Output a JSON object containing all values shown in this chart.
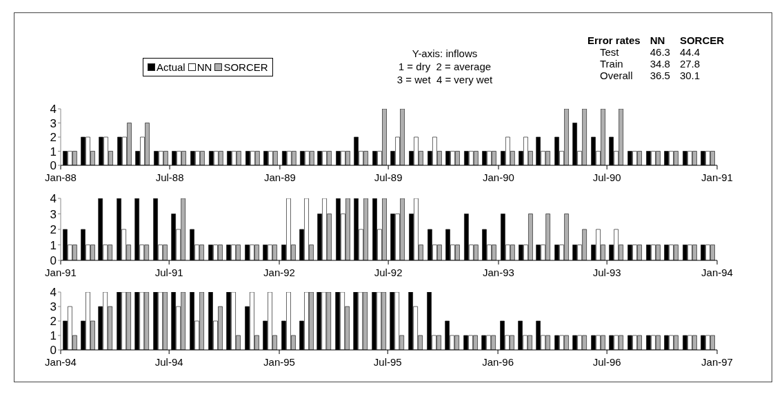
{
  "chart_data": [
    {
      "type": "bar",
      "x": [
        "1988-01-16",
        "1988-02-15",
        "1988-03-16",
        "1988-04-16",
        "1988-05-16",
        "1988-06-16",
        "1988-07-16",
        "1988-08-16",
        "1988-09-16",
        "1988-10-16",
        "1988-11-16",
        "1988-12-16",
        "1989-01-16",
        "1989-02-15",
        "1989-03-16",
        "1989-04-16",
        "1989-05-16",
        "1989-06-16",
        "1989-07-16",
        "1989-08-16",
        "1989-09-16",
        "1989-10-16",
        "1989-11-16",
        "1989-12-16",
        "1990-01-16",
        "1990-02-15",
        "1990-03-16",
        "1990-04-16",
        "1990-05-16",
        "1990-06-16",
        "1990-07-16",
        "1990-08-16",
        "1990-09-16",
        "1990-10-16",
        "1990-11-16",
        "1990-12-16"
      ],
      "series": [
        {
          "name": "Actual",
          "color": "#000000",
          "values": [
            1,
            2,
            2,
            2,
            1,
            1,
            1,
            1,
            1,
            1,
            1,
            1,
            1,
            1,
            1,
            1,
            2,
            1,
            1,
            1,
            1,
            1,
            1,
            1,
            1,
            1,
            2,
            2,
            3,
            2,
            2,
            1,
            1,
            1,
            1,
            1
          ]
        },
        {
          "name": "NN",
          "color": "#ffffff",
          "values": [
            1,
            2,
            2,
            2,
            2,
            1,
            1,
            1,
            1,
            1,
            1,
            1,
            1,
            1,
            1,
            1,
            1,
            1,
            2,
            2,
            2,
            1,
            1,
            1,
            2,
            2,
            1,
            1,
            1,
            1,
            1,
            1,
            1,
            1,
            1,
            1
          ]
        },
        {
          "name": "SORCER",
          "color": "#b0b0b0",
          "values": [
            1,
            1,
            1,
            3,
            3,
            1,
            1,
            1,
            1,
            1,
            1,
            1,
            1,
            1,
            1,
            1,
            1,
            4,
            4,
            1,
            1,
            1,
            1,
            1,
            1,
            1,
            1,
            4,
            4,
            4,
            4,
            1,
            1,
            1,
            1,
            1
          ]
        }
      ],
      "xlim": [
        "1988-01",
        "1991-01"
      ],
      "xticks": [
        {
          "value": "1988-01",
          "label": "Jan-88"
        },
        {
          "value": "1988-07",
          "label": "Jul-88"
        },
        {
          "value": "1989-01",
          "label": "Jan-89"
        },
        {
          "value": "1989-07",
          "label": "Jul-89"
        },
        {
          "value": "1990-01",
          "label": "Jan-90"
        },
        {
          "value": "1990-07",
          "label": "Jul-90"
        },
        {
          "value": "1991-01",
          "label": "Jan-91"
        }
      ],
      "ylim": [
        0,
        4
      ],
      "yticks": [
        0,
        1,
        2,
        3,
        4
      ],
      "legend": "top left",
      "annotations": [
        "Y-axis: inflows",
        "1 = dry  2 = average",
        "3 = wet  4 = very wet",
        "Error rates  NN  SORCER",
        "Test  46.3  44.4",
        "Train  34.8  27.8",
        "Overall  36.5  30.1"
      ]
    },
    {
      "type": "bar",
      "x": [
        "1991-01-16",
        "1991-02-15",
        "1991-03-16",
        "1991-04-16",
        "1991-05-16",
        "1991-06-16",
        "1991-07-16",
        "1991-08-16",
        "1991-09-16",
        "1991-10-16",
        "1991-11-16",
        "1991-12-16",
        "1992-01-16",
        "1992-02-15",
        "1992-03-16",
        "1992-04-16",
        "1992-05-16",
        "1992-06-16",
        "1992-07-16",
        "1992-08-16",
        "1992-09-16",
        "1992-10-16",
        "1992-11-16",
        "1992-12-16",
        "1993-01-16",
        "1993-02-15",
        "1993-03-16",
        "1993-04-16",
        "1993-05-16",
        "1993-06-16",
        "1993-07-16",
        "1993-08-16",
        "1993-09-16",
        "1993-10-16",
        "1993-11-16",
        "1993-12-16"
      ],
      "series": [
        {
          "color": "#000000",
          "values": [
            2,
            2,
            4,
            4,
            4,
            4,
            3,
            2,
            1,
            1,
            1,
            1,
            1,
            2,
            3,
            4,
            4,
            4,
            3,
            3,
            2,
            2,
            3,
            2,
            3,
            1,
            1,
            1,
            1,
            1,
            1,
            1,
            1,
            1,
            1,
            1
          ]
        },
        {
          "color": "#ffffff",
          "values": [
            1,
            1,
            1,
            2,
            1,
            1,
            2,
            1,
            1,
            1,
            1,
            1,
            4,
            4,
            4,
            3,
            2,
            2,
            3,
            4,
            1,
            1,
            1,
            1,
            1,
            1,
            1,
            1,
            1,
            2,
            2,
            1,
            1,
            1,
            1,
            1
          ]
        },
        {
          "color": "#b0b0b0",
          "values": [
            1,
            1,
            1,
            1,
            1,
            1,
            4,
            1,
            1,
            1,
            1,
            1,
            1,
            1,
            3,
            4,
            4,
            4,
            4,
            1,
            1,
            1,
            1,
            1,
            1,
            3,
            3,
            3,
            2,
            1,
            1,
            1,
            1,
            1,
            1,
            1
          ]
        }
      ],
      "xlim": [
        "1991-01",
        "1994-01"
      ],
      "xticks": [
        {
          "value": "1991-01",
          "label": "Jan-91"
        },
        {
          "value": "1991-07",
          "label": "Jul-91"
        },
        {
          "value": "1992-01",
          "label": "Jan-92"
        },
        {
          "value": "1992-07",
          "label": "Jul-92"
        },
        {
          "value": "1993-01",
          "label": "Jan-93"
        },
        {
          "value": "1993-07",
          "label": "Jul-93"
        },
        {
          "value": "1994-01",
          "label": "Jan-94"
        }
      ],
      "ylim": [
        0,
        4
      ],
      "yticks": [
        0,
        1,
        2,
        3,
        4
      ]
    },
    {
      "type": "bar",
      "x": [
        "1994-01-16",
        "1994-02-15",
        "1994-03-16",
        "1994-04-16",
        "1994-05-16",
        "1994-06-16",
        "1994-07-16",
        "1994-08-16",
        "1994-09-16",
        "1994-10-16",
        "1994-11-16",
        "1994-12-16",
        "1995-01-16",
        "1995-02-15",
        "1995-03-16",
        "1995-04-16",
        "1995-05-16",
        "1995-06-16",
        "1995-07-16",
        "1995-08-16",
        "1995-09-16",
        "1995-10-16",
        "1995-11-16",
        "1995-12-16",
        "1996-01-16",
        "1996-02-15",
        "1996-03-16",
        "1996-04-16",
        "1996-05-16",
        "1996-06-16",
        "1996-07-16",
        "1996-08-16",
        "1996-09-16",
        "1996-10-16",
        "1996-11-16",
        "1996-12-16"
      ],
      "series": [
        {
          "color": "#000000",
          "values": [
            2,
            2,
            3,
            4,
            4,
            4,
            4,
            4,
            4,
            4,
            3,
            2,
            2,
            2,
            4,
            4,
            4,
            4,
            4,
            4,
            4,
            2,
            1,
            1,
            2,
            2,
            2,
            1,
            1,
            1,
            1,
            1,
            1,
            1,
            1,
            1
          ]
        },
        {
          "color": "#ffffff",
          "values": [
            3,
            4,
            4,
            4,
            4,
            4,
            3,
            2,
            2,
            4,
            4,
            4,
            4,
            4,
            4,
            4,
            4,
            4,
            4,
            3,
            1,
            1,
            1,
            1,
            1,
            1,
            1,
            1,
            1,
            1,
            1,
            1,
            1,
            1,
            1,
            1
          ]
        },
        {
          "color": "#b0b0b0",
          "values": [
            1,
            2,
            3,
            4,
            4,
            4,
            4,
            4,
            3,
            1,
            1,
            1,
            1,
            4,
            4,
            3,
            4,
            4,
            1,
            1,
            1,
            1,
            1,
            1,
            1,
            1,
            1,
            1,
            1,
            1,
            1,
            1,
            1,
            1,
            1,
            1
          ]
        }
      ],
      "xlim": [
        "1994-01",
        "1997-01"
      ],
      "xticks": [
        {
          "value": "1994-01",
          "label": "Jan-94"
        },
        {
          "value": "1994-07",
          "label": "Jul-94"
        },
        {
          "value": "1995-01",
          "label": "Jan-95"
        },
        {
          "value": "1995-07",
          "label": "Jul-95"
        },
        {
          "value": "1996-01",
          "label": "Jan-96"
        },
        {
          "value": "1996-07",
          "label": "Jul-96"
        },
        {
          "value": "1997-01",
          "label": "Jan-97"
        }
      ],
      "ylim": [
        0,
        4
      ],
      "yticks": [
        0,
        1,
        2,
        3,
        4
      ]
    }
  ]
}
